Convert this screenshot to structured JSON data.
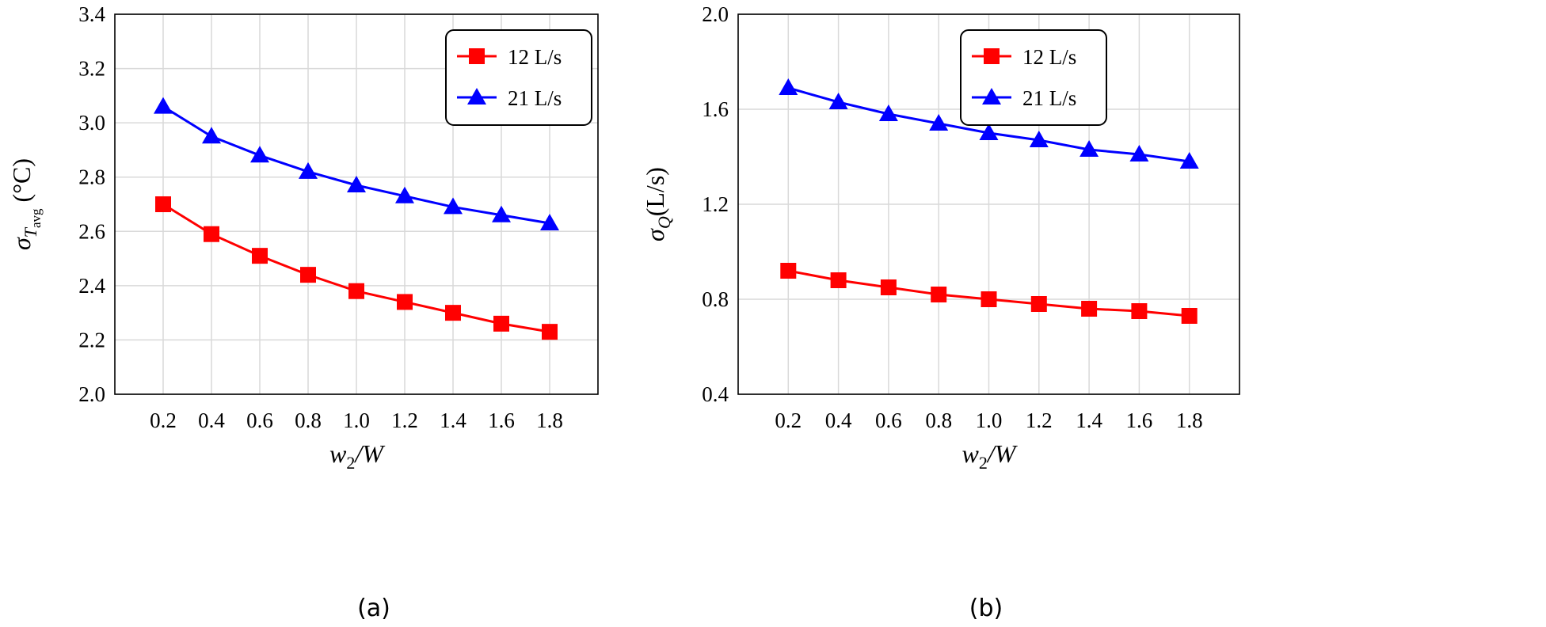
{
  "chart_data": [
    {
      "type": "line",
      "panel_label": "(a)",
      "x": [
        0.2,
        0.4,
        0.6,
        0.8,
        1.0,
        1.2,
        1.4,
        1.6,
        1.8
      ],
      "xlim": [
        0,
        2.0
      ],
      "ylim": [
        2.0,
        3.4
      ],
      "xticks": [
        "0.2",
        "0.4",
        "0.6",
        "0.8",
        "1.0",
        "1.2",
        "1.4",
        "1.6",
        "1.8"
      ],
      "yticks": [
        "2.0",
        "2.2",
        "2.4",
        "2.6",
        "2.8",
        "3.0",
        "3.2",
        "3.4"
      ],
      "xlabel": {
        "var": "w",
        "sub": "2",
        "rest": "/W"
      },
      "ylabel": {
        "sigma": "σ",
        "sub": "T",
        "subsub": "avg",
        "unit": "(°C)"
      },
      "grid": true,
      "legend_position": "top-right",
      "series": [
        {
          "name": "12 L/s",
          "color": "#ff0000",
          "marker": "square",
          "values": [
            2.7,
            2.59,
            2.51,
            2.44,
            2.38,
            2.34,
            2.3,
            2.26,
            2.23
          ]
        },
        {
          "name": "21 L/s",
          "color": "#0000ff",
          "marker": "triangle",
          "values": [
            3.06,
            2.95,
            2.88,
            2.82,
            2.77,
            2.73,
            2.69,
            2.66,
            2.63
          ]
        }
      ]
    },
    {
      "type": "line",
      "panel_label": "(b)",
      "x": [
        0.2,
        0.4,
        0.6,
        0.8,
        1.0,
        1.2,
        1.4,
        1.6,
        1.8
      ],
      "xlim": [
        0,
        2.0
      ],
      "ylim": [
        0.4,
        2.0
      ],
      "xticks": [
        "0.2",
        "0.4",
        "0.6",
        "0.8",
        "1.0",
        "1.2",
        "1.4",
        "1.6",
        "1.8"
      ],
      "yticks": [
        "0.4",
        "0.8",
        "1.2",
        "1.6",
        "2.0"
      ],
      "xlabel": {
        "var": "w",
        "sub": "2",
        "rest": "/W"
      },
      "ylabel": {
        "sigma": "σ",
        "sub": "Q",
        "unit": "(L/s)"
      },
      "grid": true,
      "legend_position": "top-right",
      "series": [
        {
          "name": "12 L/s",
          "color": "#ff0000",
          "marker": "square",
          "values": [
            0.92,
            0.88,
            0.85,
            0.82,
            0.8,
            0.78,
            0.76,
            0.75,
            0.73
          ]
        },
        {
          "name": "21 L/s",
          "color": "#0000ff",
          "marker": "triangle",
          "values": [
            1.69,
            1.63,
            1.58,
            1.54,
            1.5,
            1.47,
            1.43,
            1.41,
            1.38
          ]
        }
      ]
    }
  ]
}
